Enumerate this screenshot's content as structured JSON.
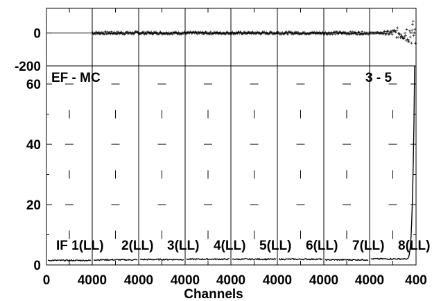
{
  "chart_data": [
    {
      "type": "scatter",
      "panel": "residual",
      "ylim": [
        -200,
        150
      ],
      "y_ticks": [
        {
          "value": 0,
          "label": "0"
        },
        {
          "value": -200,
          "label": "-200"
        }
      ],
      "points_note_free": true,
      "x_segments": [
        {
          "channel_start": 140,
          "channel_end": 4000,
          "center": 0,
          "noise": 12
        },
        {
          "channel_start": 0,
          "channel_end": 4000,
          "center": 0,
          "noise": 8
        },
        {
          "channel_start": 0,
          "channel_end": 4000,
          "center": 0,
          "noise": 7
        },
        {
          "channel_start": 0,
          "channel_end": 4000,
          "center": 0,
          "noise": 7
        },
        {
          "channel_start": 0,
          "channel_end": 4000,
          "center": 0,
          "noise": 7
        },
        {
          "channel_start": 0,
          "channel_end": 4000,
          "center": 0,
          "noise": 7
        },
        {
          "channel_start": 0,
          "channel_end": 4000,
          "center": 0,
          "noise": 8
        },
        {
          "channel_start": 0,
          "channel_end": 500,
          "center": 0,
          "noise": 90
        }
      ]
    },
    {
      "type": "line",
      "panel": "spectrum",
      "ylim": [
        0,
        66
      ],
      "y_ticks": [
        {
          "value": 0,
          "label": "0"
        },
        {
          "value": 20,
          "label": "20"
        },
        {
          "value": 40,
          "label": "40"
        },
        {
          "value": 60,
          "label": "60"
        }
      ],
      "x_tick_labels": [
        "0",
        "4000",
        "4000",
        "4000",
        "4000",
        "4000",
        "4000",
        "4000",
        "400"
      ],
      "xlabel": "Channels",
      "annotations": {
        "left": "EF - MC",
        "right": "3 - 5"
      },
      "if_labels": [
        "IF 1(LL)",
        "2(LL)",
        "3(LL)",
        "4(LL)",
        "5(LL)",
        "6(LL)",
        "7(LL)",
        "8(LL)"
      ],
      "segments": [
        {
          "label": "IF 1",
          "level": 1.5
        },
        {
          "label": "IF 2",
          "level": 1.7
        },
        {
          "label": "IF 3",
          "level": 1.8
        },
        {
          "label": "IF 4",
          "level": 1.9
        },
        {
          "label": "IF 5",
          "level": 1.9
        },
        {
          "label": "IF 6",
          "level": 1.9
        },
        {
          "label": "IF 7",
          "level": 1.7
        },
        {
          "label": "IF 8",
          "level": 2.0,
          "peak": 66
        }
      ]
    }
  ]
}
